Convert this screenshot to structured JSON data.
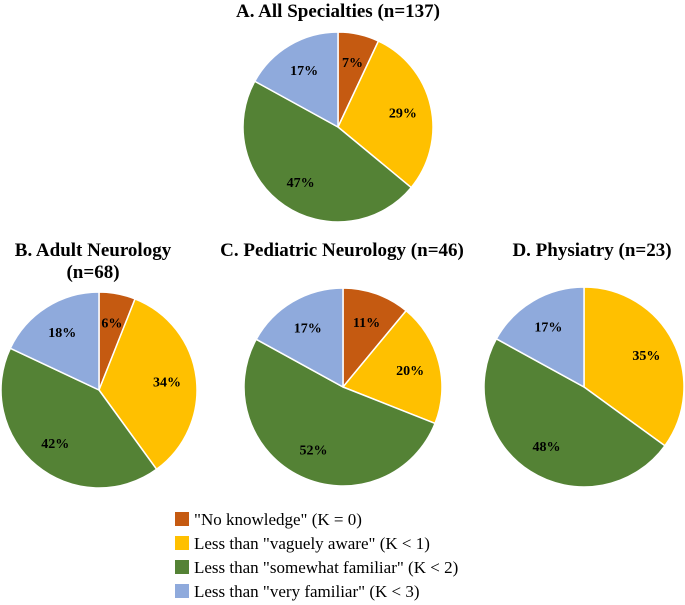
{
  "chart_data": [
    {
      "type": "pie",
      "title": "A. All Specialties (n=137)",
      "categories": [
        "\"No knowledge\" (K = 0)",
        "Less than \"vaguely aware\" (K < 1)",
        "Less than \"somewhat familiar\" (K < 2)",
        "Less than \"very familiar\" (K < 3)"
      ],
      "values": [
        7,
        29,
        47,
        17
      ],
      "labels": [
        "7%",
        "29%",
        "47%",
        "17%"
      ]
    },
    {
      "type": "pie",
      "title": "B. Adult Neurology",
      "subtitle": "(n=68)",
      "categories": [
        "\"No knowledge\" (K = 0)",
        "Less than \"vaguely aware\" (K < 1)",
        "Less than \"somewhat familiar\" (K < 2)",
        "Less than \"very familiar\" (K < 3)"
      ],
      "values": [
        6,
        34,
        42,
        18
      ],
      "labels": [
        "6%",
        "34%",
        "42%",
        "18%"
      ]
    },
    {
      "type": "pie",
      "title": "C. Pediatric Neurology (n=46)",
      "categories": [
        "\"No knowledge\" (K = 0)",
        "Less than \"vaguely aware\" (K < 1)",
        "Less than \"somewhat familiar\" (K < 2)",
        "Less than \"very familiar\" (K < 3)"
      ],
      "values": [
        11,
        20,
        52,
        17
      ],
      "labels": [
        "11%",
        "20%",
        "52%",
        "17%"
      ]
    },
    {
      "type": "pie",
      "title": "D. Physiatry (n=23)",
      "categories": [
        "\"No knowledge\" (K = 0)",
        "Less than \"vaguely aware\" (K < 1)",
        "Less than \"somewhat familiar\" (K < 2)",
        "Less than \"very familiar\" (K < 3)"
      ],
      "values": [
        0,
        35,
        48,
        17
      ],
      "labels": [
        "",
        "35%",
        "48%",
        "17%"
      ]
    }
  ],
  "legend": {
    "placement": "bottom-center",
    "items": [
      {
        "label": "\"No knowledge\" (K = 0)",
        "color": "#C55A11"
      },
      {
        "label": "Less than \"vaguely aware\" (K < 1)",
        "color": "#FFC000"
      },
      {
        "label": "Less than \"somewhat familiar\" (K < 2)",
        "color": "#548235"
      },
      {
        "label": "Less than \"very familiar\" (K < 3)",
        "color": "#8FAADC"
      }
    ]
  },
  "colors": [
    "#C55A11",
    "#FFC000",
    "#548235",
    "#8FAADC"
  ]
}
